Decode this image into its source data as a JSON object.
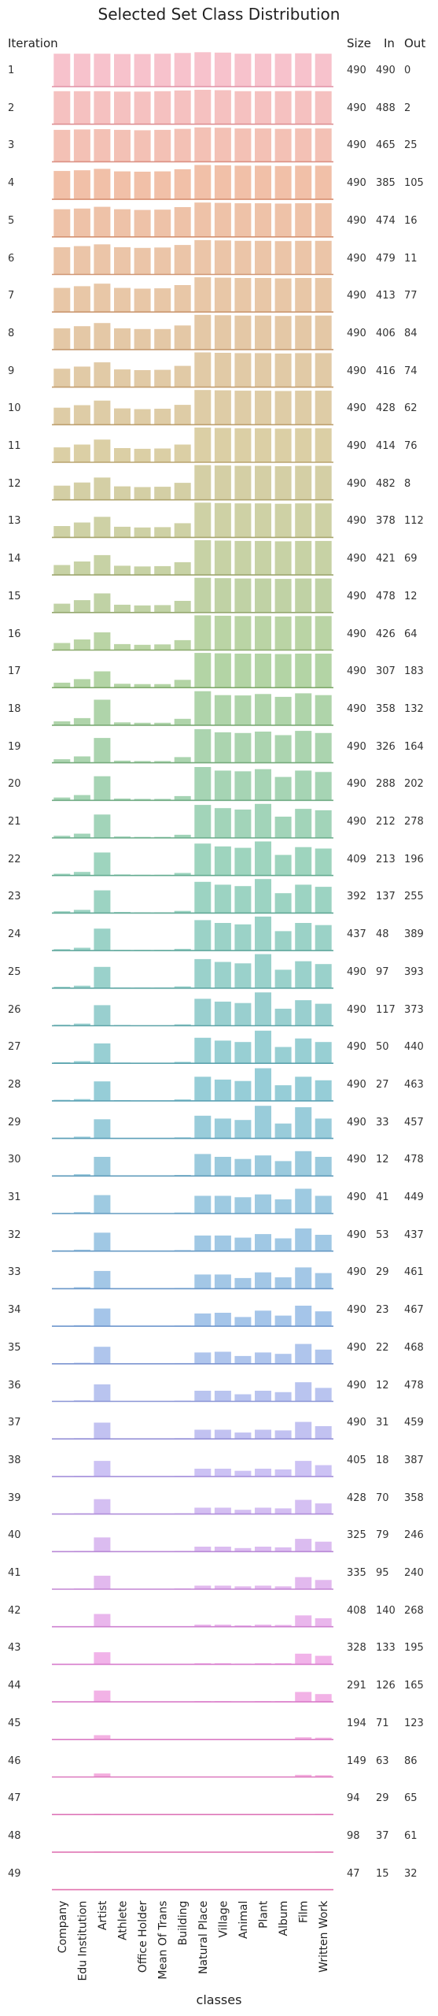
{
  "chart_data": {
    "type": "bar",
    "title": "Selected Set Class Distribution",
    "xlabel": "classes",
    "row_header": "Iteration",
    "stat_headers": [
      "Size",
      "In",
      "Out"
    ],
    "categories": [
      "Company",
      "Edu Institution",
      "Artist",
      "Athlete",
      "Office Holder",
      "Mean Of Trans",
      "Building",
      "Natural Place",
      "Village",
      "Animal",
      "Plant",
      "Album",
      "Film",
      "Written Work"
    ],
    "ylim": [
      0,
      1
    ],
    "value_note": "values are relative bar heights within each iteration panel (0-1)",
    "iterations": [
      {
        "label": "1",
        "size": "490",
        "in": "490",
        "out": "0",
        "values": [
          0.93,
          0.93,
          0.93,
          0.92,
          0.92,
          0.93,
          0.95,
          0.97,
          0.96,
          0.93,
          0.93,
          0.93,
          0.94,
          0.93
        ]
      },
      {
        "label": "2",
        "size": "490",
        "in": "488",
        "out": "2",
        "values": [
          0.93,
          0.93,
          0.93,
          0.92,
          0.92,
          0.93,
          0.95,
          0.97,
          0.96,
          0.93,
          0.93,
          0.93,
          0.94,
          0.93
        ]
      },
      {
        "label": "3",
        "size": "490",
        "in": "465",
        "out": "25",
        "values": [
          0.9,
          0.91,
          0.92,
          0.9,
          0.89,
          0.9,
          0.93,
          0.97,
          0.96,
          0.94,
          0.94,
          0.93,
          0.94,
          0.94
        ]
      },
      {
        "label": "4",
        "size": "490",
        "in": "385",
        "out": "105",
        "values": [
          0.8,
          0.82,
          0.86,
          0.79,
          0.78,
          0.79,
          0.85,
          0.97,
          0.96,
          0.95,
          0.95,
          0.94,
          0.95,
          0.95
        ]
      },
      {
        "label": "5",
        "size": "490",
        "in": "474",
        "out": "16",
        "values": [
          0.78,
          0.8,
          0.85,
          0.78,
          0.76,
          0.77,
          0.84,
          0.97,
          0.96,
          0.95,
          0.95,
          0.94,
          0.95,
          0.95
        ]
      },
      {
        "label": "6",
        "size": "490",
        "in": "479",
        "out": "11",
        "values": [
          0.77,
          0.8,
          0.85,
          0.77,
          0.75,
          0.76,
          0.83,
          0.97,
          0.96,
          0.95,
          0.95,
          0.94,
          0.95,
          0.95
        ]
      },
      {
        "label": "7",
        "size": "490",
        "in": "413",
        "out": "77",
        "values": [
          0.68,
          0.73,
          0.8,
          0.68,
          0.66,
          0.67,
          0.76,
          0.98,
          0.97,
          0.96,
          0.96,
          0.95,
          0.96,
          0.96
        ]
      },
      {
        "label": "8",
        "size": "490",
        "in": "406",
        "out": "84",
        "values": [
          0.6,
          0.66,
          0.75,
          0.6,
          0.58,
          0.58,
          0.68,
          0.98,
          0.97,
          0.96,
          0.96,
          0.95,
          0.96,
          0.96
        ]
      },
      {
        "label": "9",
        "size": "490",
        "in": "416",
        "out": "74",
        "values": [
          0.52,
          0.58,
          0.7,
          0.5,
          0.48,
          0.49,
          0.6,
          0.98,
          0.97,
          0.96,
          0.96,
          0.95,
          0.96,
          0.96
        ]
      },
      {
        "label": "10",
        "size": "490",
        "in": "428",
        "out": "62",
        "values": [
          0.48,
          0.55,
          0.68,
          0.46,
          0.44,
          0.45,
          0.56,
          0.98,
          0.97,
          0.96,
          0.96,
          0.95,
          0.96,
          0.96
        ]
      },
      {
        "label": "11",
        "size": "490",
        "in": "414",
        "out": "76",
        "values": [
          0.42,
          0.5,
          0.64,
          0.4,
          0.38,
          0.39,
          0.5,
          0.98,
          0.97,
          0.96,
          0.96,
          0.95,
          0.96,
          0.96
        ]
      },
      {
        "label": "12",
        "size": "490",
        "in": "482",
        "out": "8",
        "values": [
          0.4,
          0.49,
          0.63,
          0.38,
          0.36,
          0.37,
          0.48,
          0.98,
          0.97,
          0.96,
          0.96,
          0.95,
          0.96,
          0.96
        ]
      },
      {
        "label": "13",
        "size": "490",
        "in": "378",
        "out": "112",
        "values": [
          0.32,
          0.42,
          0.58,
          0.3,
          0.28,
          0.29,
          0.4,
          0.98,
          0.97,
          0.96,
          0.96,
          0.95,
          0.96,
          0.96
        ]
      },
      {
        "label": "14",
        "size": "490",
        "in": "421",
        "out": "69",
        "values": [
          0.28,
          0.38,
          0.56,
          0.26,
          0.24,
          0.25,
          0.36,
          0.98,
          0.97,
          0.96,
          0.96,
          0.95,
          0.96,
          0.96
        ]
      },
      {
        "label": "15",
        "size": "490",
        "in": "478",
        "out": "12",
        "values": [
          0.25,
          0.35,
          0.54,
          0.22,
          0.2,
          0.21,
          0.33,
          0.98,
          0.97,
          0.96,
          0.96,
          0.95,
          0.96,
          0.96
        ]
      },
      {
        "label": "16",
        "size": "490",
        "in": "426",
        "out": "64",
        "values": [
          0.2,
          0.3,
          0.5,
          0.17,
          0.15,
          0.16,
          0.28,
          0.98,
          0.97,
          0.96,
          0.96,
          0.95,
          0.96,
          0.96
        ]
      },
      {
        "label": "17",
        "size": "490",
        "in": "307",
        "out": "183",
        "values": [
          0.14,
          0.24,
          0.46,
          0.11,
          0.1,
          0.1,
          0.22,
          0.98,
          0.97,
          0.96,
          0.96,
          0.95,
          0.96,
          0.96
        ]
      },
      {
        "label": "18",
        "size": "490",
        "in": "358",
        "out": "132",
        "values": [
          0.11,
          0.2,
          0.72,
          0.08,
          0.07,
          0.07,
          0.18,
          0.96,
          0.85,
          0.84,
          0.88,
          0.8,
          0.9,
          0.85
        ]
      },
      {
        "label": "19",
        "size": "490",
        "in": "326",
        "out": "164",
        "values": [
          0.1,
          0.18,
          0.7,
          0.06,
          0.05,
          0.05,
          0.16,
          0.95,
          0.86,
          0.84,
          0.88,
          0.78,
          0.9,
          0.84
        ]
      },
      {
        "label": "20",
        "size": "490",
        "in": "288",
        "out": "202",
        "values": [
          0.08,
          0.15,
          0.68,
          0.05,
          0.04,
          0.04,
          0.12,
          0.94,
          0.84,
          0.82,
          0.88,
          0.66,
          0.84,
          0.8
        ]
      },
      {
        "label": "21",
        "size": "490",
        "in": "212",
        "out": "278",
        "values": [
          0.06,
          0.12,
          0.66,
          0.04,
          0.03,
          0.03,
          0.09,
          0.93,
          0.84,
          0.8,
          0.96,
          0.6,
          0.82,
          0.78
        ]
      },
      {
        "label": "22",
        "size": "409",
        "in": "213",
        "out": "196",
        "values": [
          0.05,
          0.1,
          0.65,
          0.03,
          0.02,
          0.02,
          0.07,
          0.9,
          0.82,
          0.78,
          0.96,
          0.58,
          0.8,
          0.76
        ]
      },
      {
        "label": "23",
        "size": "392",
        "in": "137",
        "out": "255",
        "values": [
          0.05,
          0.09,
          0.64,
          0.03,
          0.02,
          0.02,
          0.06,
          0.88,
          0.8,
          0.76,
          0.96,
          0.56,
          0.8,
          0.74
        ]
      },
      {
        "label": "24",
        "size": "437",
        "in": "48",
        "out": "389",
        "values": [
          0.04,
          0.08,
          0.62,
          0.02,
          0.02,
          0.02,
          0.05,
          0.86,
          0.78,
          0.74,
          0.96,
          0.55,
          0.78,
          0.72
        ]
      },
      {
        "label": "25",
        "size": "490",
        "in": "97",
        "out": "393",
        "values": [
          0.04,
          0.07,
          0.6,
          0.02,
          0.02,
          0.02,
          0.05,
          0.82,
          0.74,
          0.7,
          0.96,
          0.52,
          0.76,
          0.68
        ]
      },
      {
        "label": "26",
        "size": "490",
        "in": "117",
        "out": "373",
        "values": [
          0.03,
          0.06,
          0.58,
          0.02,
          0.01,
          0.01,
          0.04,
          0.76,
          0.68,
          0.64,
          0.94,
          0.48,
          0.72,
          0.62
        ]
      },
      {
        "label": "27",
        "size": "490",
        "in": "50",
        "out": "440",
        "values": [
          0.03,
          0.06,
          0.56,
          0.02,
          0.01,
          0.01,
          0.04,
          0.72,
          0.64,
          0.6,
          0.92,
          0.46,
          0.7,
          0.6
        ]
      },
      {
        "label": "28",
        "size": "490",
        "in": "27",
        "out": "463",
        "values": [
          0.03,
          0.05,
          0.55,
          0.02,
          0.01,
          0.01,
          0.04,
          0.68,
          0.6,
          0.56,
          0.92,
          0.44,
          0.68,
          0.58
        ]
      },
      {
        "label": "29",
        "size": "490",
        "in": "33",
        "out": "457",
        "values": [
          0.02,
          0.05,
          0.54,
          0.01,
          0.01,
          0.01,
          0.03,
          0.64,
          0.56,
          0.52,
          0.92,
          0.42,
          0.88,
          0.56
        ]
      },
      {
        "label": "30",
        "size": "490",
        "in": "12",
        "out": "478",
        "values": [
          0.02,
          0.05,
          0.54,
          0.01,
          0.01,
          0.01,
          0.03,
          0.62,
          0.54,
          0.48,
          0.58,
          0.42,
          0.7,
          0.54
        ]
      },
      {
        "label": "31",
        "size": "490",
        "in": "41",
        "out": "449",
        "values": [
          0.02,
          0.04,
          0.52,
          0.01,
          0.01,
          0.01,
          0.03,
          0.5,
          0.5,
          0.46,
          0.54,
          0.4,
          0.7,
          0.5
        ]
      },
      {
        "label": "32",
        "size": "490",
        "in": "53",
        "out": "437",
        "values": [
          0.02,
          0.04,
          0.52,
          0.01,
          0.01,
          0.01,
          0.03,
          0.44,
          0.44,
          0.38,
          0.48,
          0.36,
          0.64,
          0.46
        ]
      },
      {
        "label": "33",
        "size": "490",
        "in": "29",
        "out": "461",
        "values": [
          0.01,
          0.04,
          0.5,
          0.01,
          0.01,
          0.01,
          0.02,
          0.4,
          0.4,
          0.3,
          0.46,
          0.32,
          0.6,
          0.44
        ]
      },
      {
        "label": "34",
        "size": "490",
        "in": "23",
        "out": "467",
        "values": [
          0.01,
          0.03,
          0.5,
          0.01,
          0.01,
          0.01,
          0.02,
          0.36,
          0.38,
          0.26,
          0.44,
          0.3,
          0.58,
          0.42
        ]
      },
      {
        "label": "35",
        "size": "490",
        "in": "22",
        "out": "468",
        "values": [
          0.01,
          0.03,
          0.48,
          0.01,
          0.01,
          0.01,
          0.02,
          0.32,
          0.34,
          0.22,
          0.32,
          0.28,
          0.56,
          0.4
        ]
      },
      {
        "label": "36",
        "size": "490",
        "in": "12",
        "out": "478",
        "values": [
          0.01,
          0.03,
          0.48,
          0.01,
          0.01,
          0.01,
          0.02,
          0.3,
          0.3,
          0.2,
          0.3,
          0.26,
          0.54,
          0.38
        ]
      },
      {
        "label": "37",
        "size": "490",
        "in": "31",
        "out": "459",
        "values": [
          0.01,
          0.02,
          0.46,
          0.01,
          0.01,
          0.01,
          0.02,
          0.26,
          0.26,
          0.18,
          0.26,
          0.24,
          0.48,
          0.36
        ]
      },
      {
        "label": "38",
        "size": "405",
        "in": "18",
        "out": "387",
        "values": [
          0.01,
          0.02,
          0.44,
          0.01,
          0.01,
          0.01,
          0.02,
          0.22,
          0.22,
          0.16,
          0.22,
          0.2,
          0.44,
          0.32
        ]
      },
      {
        "label": "39",
        "size": "428",
        "in": "70",
        "out": "358",
        "values": [
          0.01,
          0.02,
          0.42,
          0.01,
          0.01,
          0.01,
          0.02,
          0.18,
          0.18,
          0.12,
          0.18,
          0.16,
          0.4,
          0.3
        ]
      },
      {
        "label": "40",
        "size": "325",
        "in": "79",
        "out": "246",
        "values": [
          0.01,
          0.02,
          0.4,
          0.01,
          0.01,
          0.01,
          0.02,
          0.14,
          0.14,
          0.1,
          0.14,
          0.12,
          0.36,
          0.28
        ]
      },
      {
        "label": "41",
        "size": "335",
        "in": "95",
        "out": "240",
        "values": [
          0.01,
          0.02,
          0.38,
          0.01,
          0.01,
          0.01,
          0.02,
          0.1,
          0.1,
          0.08,
          0.1,
          0.08,
          0.34,
          0.26
        ]
      },
      {
        "label": "42",
        "size": "408",
        "in": "140",
        "out": "268",
        "values": [
          0.01,
          0.01,
          0.36,
          0.01,
          0.01,
          0.01,
          0.01,
          0.06,
          0.06,
          0.04,
          0.06,
          0.05,
          0.32,
          0.24
        ]
      },
      {
        "label": "43",
        "size": "328",
        "in": "133",
        "out": "195",
        "values": [
          0.0,
          0.01,
          0.34,
          0.0,
          0.0,
          0.0,
          0.01,
          0.03,
          0.03,
          0.02,
          0.03,
          0.03,
          0.3,
          0.24
        ]
      },
      {
        "label": "44",
        "size": "291",
        "in": "126",
        "out": "165",
        "values": [
          0.0,
          0.01,
          0.32,
          0.0,
          0.0,
          0.0,
          0.01,
          0.02,
          0.02,
          0.01,
          0.02,
          0.02,
          0.28,
          0.22
        ]
      },
      {
        "label": "45",
        "size": "194",
        "in": "71",
        "out": "123",
        "values": [
          0.0,
          0.01,
          0.12,
          0.0,
          0.0,
          0.0,
          0.01,
          0.01,
          0.01,
          0.01,
          0.01,
          0.01,
          0.06,
          0.05
        ]
      },
      {
        "label": "46",
        "size": "149",
        "in": "63",
        "out": "86",
        "values": [
          0.0,
          0.0,
          0.1,
          0.0,
          0.0,
          0.0,
          0.0,
          0.01,
          0.01,
          0.0,
          0.01,
          0.0,
          0.06,
          0.05
        ]
      },
      {
        "label": "47",
        "size": "94",
        "in": "29",
        "out": "65",
        "values": [
          0.0,
          0.0,
          0.02,
          0.0,
          0.0,
          0.0,
          0.0,
          0.0,
          0.0,
          0.0,
          0.0,
          0.0,
          0.01,
          0.02
        ]
      },
      {
        "label": "48",
        "size": "98",
        "in": "37",
        "out": "61",
        "values": [
          0.0,
          0.0,
          0.02,
          0.0,
          0.0,
          0.0,
          0.0,
          0.0,
          0.0,
          0.0,
          0.0,
          0.0,
          0.01,
          0.02
        ]
      },
      {
        "label": "49",
        "size": "47",
        "in": "15",
        "out": "32",
        "values": [
          0.0,
          0.0,
          0.01,
          0.0,
          0.0,
          0.0,
          0.0,
          0.0,
          0.0,
          0.0,
          0.0,
          0.0,
          0.0,
          0.01
        ]
      }
    ]
  }
}
